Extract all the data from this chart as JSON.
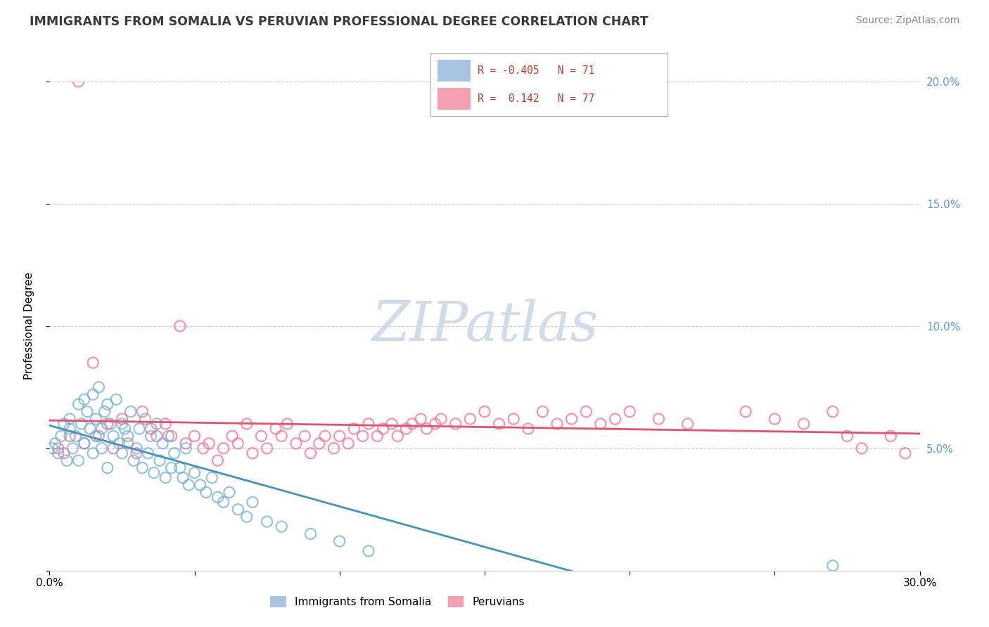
{
  "title": "IMMIGRANTS FROM SOMALIA VS PERUVIAN PROFESSIONAL DEGREE CORRELATION CHART",
  "source": "Source: ZipAtlas.com",
  "ylabel": "Professional Degree",
  "xmin": 0.0,
  "xmax": 0.3,
  "ymin": 0.0,
  "ymax": 0.2,
  "somalia_color": "#6baed6",
  "somalia_edge": "#6baed6",
  "peruvian_color": "#fb6a8a",
  "peruvian_edge": "#fb6a8a",
  "somalia_line_color": "#4292c6",
  "peruvian_line_color": "#e8506a",
  "legend_R1": "R = -0.405",
  "legend_N1": "N = 71",
  "legend_R2": "R =  0.142",
  "legend_N2": "N = 77",
  "legend_color1": "#a8c4e0",
  "legend_color2": "#f4a0b0",
  "legend_text_color": "#c0392b",
  "watermark_color": "#d0dce8",
  "ytick_color": "#5b9bd5",
  "bg_color": "#ffffff",
  "grid_color": "#cccccc",
  "somalia_scatter_x": [
    0.001,
    0.002,
    0.003,
    0.004,
    0.005,
    0.006,
    0.007,
    0.007,
    0.008,
    0.009,
    0.01,
    0.01,
    0.011,
    0.012,
    0.012,
    0.013,
    0.014,
    0.015,
    0.015,
    0.016,
    0.016,
    0.017,
    0.018,
    0.018,
    0.019,
    0.02,
    0.02,
    0.021,
    0.022,
    0.023,
    0.024,
    0.025,
    0.025,
    0.026,
    0.027,
    0.028,
    0.029,
    0.03,
    0.031,
    0.032,
    0.033,
    0.034,
    0.035,
    0.036,
    0.037,
    0.038,
    0.039,
    0.04,
    0.041,
    0.042,
    0.043,
    0.045,
    0.046,
    0.047,
    0.048,
    0.05,
    0.052,
    0.054,
    0.056,
    0.058,
    0.06,
    0.062,
    0.065,
    0.068,
    0.07,
    0.075,
    0.08,
    0.09,
    0.1,
    0.11,
    0.27
  ],
  "somalia_scatter_y": [
    0.05,
    0.052,
    0.048,
    0.055,
    0.06,
    0.045,
    0.058,
    0.062,
    0.05,
    0.055,
    0.068,
    0.045,
    0.06,
    0.07,
    0.052,
    0.065,
    0.058,
    0.072,
    0.048,
    0.062,
    0.055,
    0.075,
    0.058,
    0.05,
    0.065,
    0.068,
    0.042,
    0.06,
    0.055,
    0.07,
    0.052,
    0.06,
    0.048,
    0.058,
    0.055,
    0.065,
    0.045,
    0.05,
    0.058,
    0.042,
    0.062,
    0.048,
    0.055,
    0.04,
    0.06,
    0.045,
    0.052,
    0.038,
    0.055,
    0.042,
    0.048,
    0.042,
    0.038,
    0.05,
    0.035,
    0.04,
    0.035,
    0.032,
    0.038,
    0.03,
    0.028,
    0.032,
    0.025,
    0.022,
    0.028,
    0.02,
    0.018,
    0.015,
    0.012,
    0.008,
    0.002
  ],
  "peruvian_scatter_x": [
    0.003,
    0.005,
    0.007,
    0.01,
    0.012,
    0.015,
    0.017,
    0.02,
    0.022,
    0.025,
    0.027,
    0.03,
    0.032,
    0.035,
    0.037,
    0.04,
    0.042,
    0.045,
    0.047,
    0.05,
    0.053,
    0.055,
    0.058,
    0.06,
    0.063,
    0.065,
    0.068,
    0.07,
    0.073,
    0.075,
    0.078,
    0.08,
    0.082,
    0.085,
    0.088,
    0.09,
    0.093,
    0.095,
    0.098,
    0.1,
    0.103,
    0.105,
    0.108,
    0.11,
    0.113,
    0.115,
    0.118,
    0.12,
    0.123,
    0.125,
    0.128,
    0.13,
    0.133,
    0.135,
    0.14,
    0.145,
    0.15,
    0.155,
    0.16,
    0.165,
    0.17,
    0.175,
    0.18,
    0.185,
    0.19,
    0.195,
    0.2,
    0.21,
    0.22,
    0.24,
    0.25,
    0.26,
    0.27,
    0.275,
    0.28,
    0.29,
    0.295
  ],
  "peruvian_scatter_y": [
    0.05,
    0.048,
    0.055,
    0.2,
    0.052,
    0.085,
    0.055,
    0.06,
    0.05,
    0.062,
    0.052,
    0.048,
    0.065,
    0.058,
    0.055,
    0.06,
    0.055,
    0.1,
    0.052,
    0.055,
    0.05,
    0.052,
    0.045,
    0.05,
    0.055,
    0.052,
    0.06,
    0.048,
    0.055,
    0.05,
    0.058,
    0.055,
    0.06,
    0.052,
    0.055,
    0.048,
    0.052,
    0.055,
    0.05,
    0.055,
    0.052,
    0.058,
    0.055,
    0.06,
    0.055,
    0.058,
    0.06,
    0.055,
    0.058,
    0.06,
    0.062,
    0.058,
    0.06,
    0.062,
    0.06,
    0.062,
    0.065,
    0.06,
    0.062,
    0.058,
    0.065,
    0.06,
    0.062,
    0.065,
    0.06,
    0.062,
    0.065,
    0.062,
    0.06,
    0.065,
    0.062,
    0.06,
    0.065,
    0.055,
    0.05,
    0.055,
    0.048
  ]
}
